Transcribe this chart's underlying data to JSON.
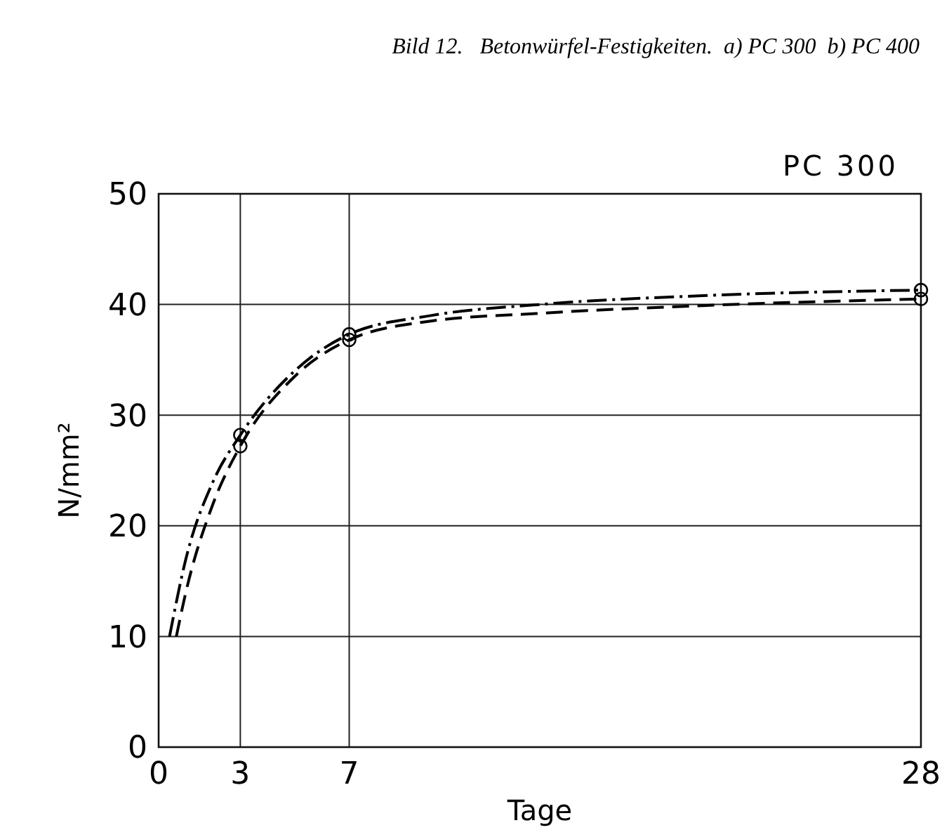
{
  "chart_data": {
    "type": "line",
    "title": "Bild 12.   Betonwürfel-Festigkeiten.  a) PC 300  b) PC 400",
    "subtitle": "PC 300",
    "xlabel": "Tage",
    "ylabel": "N/mm²",
    "xlim": [
      0,
      28
    ],
    "xticks": [
      0,
      3,
      7,
      28
    ],
    "ylim": [
      0,
      50
    ],
    "yticks": [
      0,
      10,
      20,
      30,
      40,
      50
    ],
    "grid": true,
    "series": [
      {
        "color": "#000000",
        "line_style": "dashdot",
        "marker": "none",
        "x": [
          0.4,
          1,
          2,
          3,
          5,
          7,
          10,
          14,
          20,
          28
        ],
        "values": [
          10,
          17,
          24,
          28.2,
          34,
          37.3,
          39,
          40,
          40.8,
          41.3
        ]
      },
      {
        "color": "#000000",
        "line_style": "dashed",
        "marker": "none",
        "x": [
          0.65,
          1,
          2,
          3,
          5,
          7,
          10,
          14,
          20,
          28
        ],
        "values": [
          10,
          14,
          22,
          27.2,
          33.5,
          36.8,
          38.5,
          39.2,
          39.9,
          40.5
        ]
      },
      {
        "type": "scatter",
        "color": "#000000",
        "marker": "circle",
        "x": [
          3,
          7,
          28
        ],
        "values": [
          28.2,
          37.3,
          41.3
        ]
      },
      {
        "type": "scatter",
        "color": "#000000",
        "marker": "circle",
        "x": [
          3,
          7,
          28
        ],
        "values": [
          27.2,
          36.8,
          40.5
        ]
      }
    ]
  }
}
